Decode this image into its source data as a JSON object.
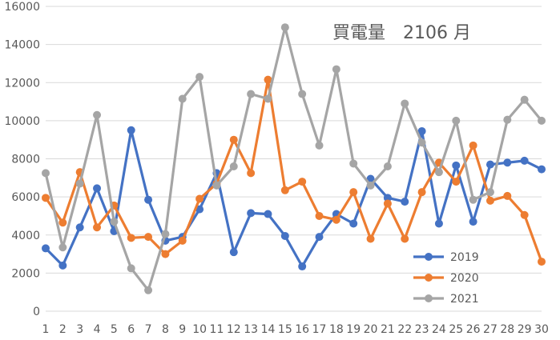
{
  "chart_data": {
    "type": "line",
    "title": "買電量　2106 月",
    "x": [
      1,
      2,
      3,
      4,
      5,
      6,
      7,
      8,
      9,
      10,
      11,
      12,
      13,
      14,
      15,
      16,
      17,
      18,
      19,
      20,
      21,
      22,
      23,
      24,
      25,
      26,
      27,
      28,
      29,
      30
    ],
    "ylim": [
      0,
      16000
    ],
    "yticks": [
      0,
      2000,
      4000,
      6000,
      8000,
      10000,
      12000,
      14000,
      16000
    ],
    "grid": true,
    "legend_position": "bottom-right",
    "series": [
      {
        "name": "2019",
        "color": "#4472C4",
        "values": [
          3300,
          2400,
          4400,
          6450,
          4200,
          9500,
          5850,
          3700,
          3900,
          5350,
          7250,
          3100,
          5150,
          5100,
          3950,
          2350,
          3900,
          5100,
          4600,
          6950,
          5950,
          5750,
          9450,
          4600,
          7650,
          4700,
          7700,
          7800,
          7900,
          7450
        ]
      },
      {
        "name": "2020",
        "color": "#ED7D31",
        "values": [
          5950,
          4650,
          7300,
          4400,
          5550,
          3850,
          3900,
          3000,
          3700,
          5900,
          6700,
          9000,
          7250,
          12150,
          6350,
          6800,
          5000,
          4800,
          6250,
          3800,
          5650,
          3800,
          6250,
          7800,
          6800,
          8700,
          5800,
          6050,
          5050,
          2600
        ]
      },
      {
        "name": "2021",
        "color": "#A5A5A5",
        "values": [
          7250,
          3350,
          6700,
          10300,
          4700,
          2250,
          1100,
          4050,
          11150,
          12300,
          6600,
          7600,
          11400,
          11150,
          14900,
          11400,
          8700,
          12700,
          7750,
          6600,
          7600,
          10900,
          8850,
          7300,
          10000,
          5850,
          6250,
          10050,
          11100,
          10000
        ]
      }
    ]
  }
}
